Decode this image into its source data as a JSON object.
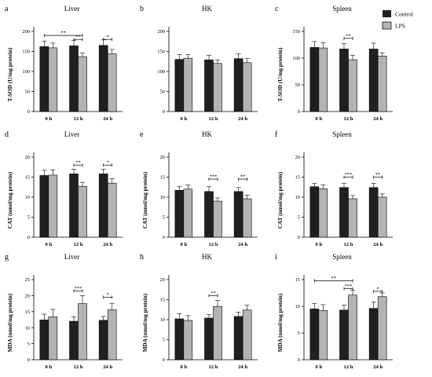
{
  "legend": {
    "control": {
      "label": "Control",
      "color": "#231f20"
    },
    "lps": {
      "label": "LPS",
      "color": "#b3b3b3"
    }
  },
  "chart_data": [
    {
      "letter": "a",
      "type": "bar",
      "title": "Liver",
      "ylabel": "T-SOD  (U/mg protein)",
      "categories": [
        "0 h",
        "12 h",
        "24 h"
      ],
      "ylim": [
        0,
        200
      ],
      "yticks": [
        0,
        50,
        100,
        150,
        200
      ],
      "series": [
        {
          "name": "Control",
          "values": [
            162,
            164,
            165
          ],
          "errors": [
            14,
            14,
            14
          ]
        },
        {
          "name": "LPS",
          "values": [
            159,
            137,
            144
          ],
          "errors": [
            12,
            9,
            11
          ]
        }
      ],
      "significance": [
        {
          "label": "**",
          "from": [
            0,
            0
          ],
          "to": [
            1,
            1
          ],
          "y": 190
        },
        {
          "label": "**",
          "from": [
            1,
            0
          ],
          "to": [
            1,
            1
          ],
          "y": 180
        },
        {
          "label": "*",
          "from": [
            2,
            0
          ],
          "to": [
            2,
            1
          ],
          "y": 180
        }
      ]
    },
    {
      "letter": "b",
      "type": "bar",
      "title": "HK",
      "ylabel": "",
      "categories": [
        "0 h",
        "12 h",
        "24 h"
      ],
      "ylim": [
        0,
        200
      ],
      "yticks": [
        0,
        50,
        100,
        150,
        200
      ],
      "series": [
        {
          "name": "Control",
          "values": [
            130,
            129,
            132
          ],
          "errors": [
            12,
            11,
            12
          ]
        },
        {
          "name": "LPS",
          "values": [
            133,
            120,
            122
          ],
          "errors": [
            9,
            9,
            10
          ]
        }
      ],
      "significance": []
    },
    {
      "letter": "c",
      "type": "bar",
      "title": "Spleen",
      "ylabel": "T-SOD  (U/mg protein)",
      "categories": [
        "0 h",
        "12 h",
        "24 h"
      ],
      "ylim": [
        0,
        150
      ],
      "yticks": [
        0,
        50,
        100,
        150
      ],
      "series": [
        {
          "name": "Control",
          "values": [
            120,
            117,
            117
          ],
          "errors": [
            11,
            10,
            11
          ]
        },
        {
          "name": "LPS",
          "values": [
            119,
            97,
            104
          ],
          "errors": [
            10,
            8,
            6
          ]
        }
      ],
      "significance": [
        {
          "label": "**",
          "from": [
            1,
            0
          ],
          "to": [
            1,
            1
          ],
          "y": 137
        }
      ]
    },
    {
      "letter": "d",
      "type": "bar",
      "title": "Liver",
      "ylabel": "CAT  (nmol/mg protein)",
      "categories": [
        "0 h",
        "12 h",
        "24 h"
      ],
      "ylim": [
        0,
        20
      ],
      "yticks": [
        0,
        5,
        10,
        15,
        20
      ],
      "series": [
        {
          "name": "Control",
          "values": [
            15.4,
            15.8,
            15.8
          ],
          "errors": [
            1.3,
            1.2,
            1.2
          ]
        },
        {
          "name": "LPS",
          "values": [
            15.5,
            12.7,
            13.5
          ],
          "errors": [
            1.3,
            1.0,
            1.1
          ]
        }
      ],
      "significance": [
        {
          "label": "**",
          "from": [
            1,
            0
          ],
          "to": [
            1,
            1
          ],
          "y": 18
        },
        {
          "label": "*",
          "from": [
            2,
            0
          ],
          "to": [
            2,
            1
          ],
          "y": 18
        }
      ]
    },
    {
      "letter": "e",
      "type": "bar",
      "title": "HK",
      "ylabel": "CAT  (nmol/mg protein)",
      "categories": [
        "0 h",
        "12 h",
        "24 h"
      ],
      "ylim": [
        0,
        20
      ],
      "yticks": [
        0,
        5,
        10,
        15,
        20
      ],
      "series": [
        {
          "name": "Control",
          "values": [
            11.7,
            11.4,
            11.4
          ],
          "errors": [
            1.0,
            1.2,
            1.0
          ]
        },
        {
          "name": "LPS",
          "values": [
            12.0,
            9.0,
            9.6
          ],
          "errors": [
            1.0,
            0.8,
            0.9
          ]
        }
      ],
      "significance": [
        {
          "label": "***",
          "from": [
            1,
            0
          ],
          "to": [
            1,
            1
          ],
          "y": 14.5
        },
        {
          "label": "**",
          "from": [
            2,
            0
          ],
          "to": [
            2,
            1
          ],
          "y": 14.5
        }
      ]
    },
    {
      "letter": "f",
      "type": "bar",
      "title": "Spleen",
      "ylabel": "CAT  (nmol/mg protein)",
      "categories": [
        "0 h",
        "12 h",
        "24 h"
      ],
      "ylim": [
        0,
        20
      ],
      "yticks": [
        0,
        5,
        10,
        15,
        20
      ],
      "series": [
        {
          "name": "Control",
          "values": [
            12.6,
            12.4,
            12.4
          ],
          "errors": [
            0.8,
            1.0,
            1.0
          ]
        },
        {
          "name": "LPS",
          "values": [
            12.1,
            9.6,
            10.0
          ],
          "errors": [
            1.0,
            0.8,
            0.8
          ]
        }
      ],
      "significance": [
        {
          "label": "***",
          "from": [
            1,
            0
          ],
          "to": [
            1,
            1
          ],
          "y": 15
        },
        {
          "label": "**",
          "from": [
            2,
            0
          ],
          "to": [
            2,
            1
          ],
          "y": 15
        }
      ]
    },
    {
      "letter": "g",
      "type": "bar",
      "title": "Liver",
      "ylabel": "MDA (nmol/mg protein)",
      "categories": [
        "0 h",
        "12 h",
        "24 h"
      ],
      "ylim": [
        0,
        25
      ],
      "yticks": [
        0,
        5,
        10,
        15,
        20,
        25
      ],
      "series": [
        {
          "name": "Control",
          "values": [
            12.4,
            12.0,
            12.3
          ],
          "errors": [
            1.8,
            1.4,
            1.2
          ]
        },
        {
          "name": "LPS",
          "values": [
            13.4,
            17.5,
            15.6
          ],
          "errors": [
            2.3,
            2.5,
            2.0
          ]
        }
      ],
      "significance": [
        {
          "label": "***",
          "from": [
            1,
            0
          ],
          "to": [
            1,
            1
          ],
          "y": 21.5
        },
        {
          "label": "*",
          "from": [
            2,
            0
          ],
          "to": [
            2,
            1
          ],
          "y": 19.5
        }
      ]
    },
    {
      "letter": "h",
      "type": "bar",
      "title": "HK",
      "ylabel": "MDA (nmol/mg protein)",
      "categories": [
        "0 h",
        "12 h",
        "24 h"
      ],
      "ylim": [
        0,
        20
      ],
      "yticks": [
        0,
        5,
        10,
        15,
        20
      ],
      "series": [
        {
          "name": "Control",
          "values": [
            10.2,
            10.4,
            10.8
          ],
          "errors": [
            1.3,
            0.9,
            1.1
          ]
        },
        {
          "name": "LPS",
          "values": [
            9.8,
            13.3,
            12.4
          ],
          "errors": [
            1.2,
            1.5,
            1.2
          ]
        }
      ],
      "significance": [
        {
          "label": "**",
          "from": [
            1,
            0
          ],
          "to": [
            1,
            1
          ],
          "y": 16
        }
      ]
    },
    {
      "letter": "i",
      "type": "bar",
      "title": "Spleen",
      "ylabel": "MDA (nmol/mg protein)",
      "categories": [
        "0 h",
        "12 h",
        "24 h"
      ],
      "ylim": [
        0,
        15
      ],
      "yticks": [
        0,
        5,
        10,
        15
      ],
      "series": [
        {
          "name": "Control",
          "values": [
            9.5,
            9.3,
            9.6
          ],
          "errors": [
            1.0,
            0.9,
            1.2
          ]
        },
        {
          "name": "LPS",
          "values": [
            9.2,
            12.1,
            11.8
          ],
          "errors": [
            1.1,
            0.9,
            0.7
          ]
        }
      ],
      "significance": [
        {
          "label": "**",
          "from": [
            0,
            0
          ],
          "to": [
            1,
            1
          ],
          "y": 14.8
        },
        {
          "label": "***",
          "from": [
            1,
            0
          ],
          "to": [
            1,
            1
          ],
          "y": 13.3
        },
        {
          "label": "*",
          "from": [
            2,
            0
          ],
          "to": [
            2,
            1
          ],
          "y": 12.8
        }
      ]
    }
  ]
}
